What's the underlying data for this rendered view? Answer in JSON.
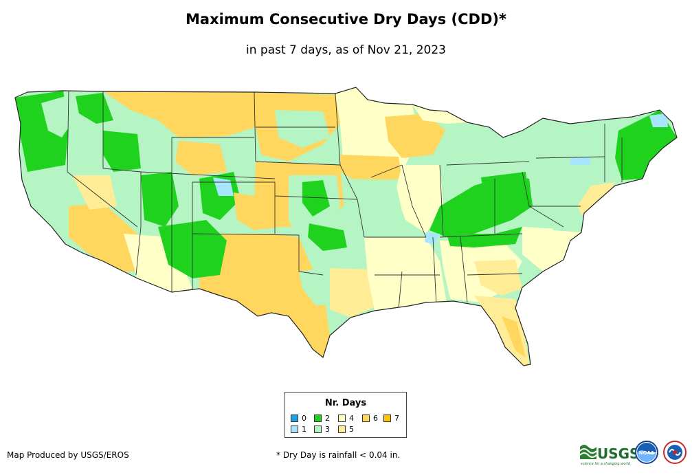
{
  "title": "Maximum Consecutive Dry Days (CDD)*",
  "subtitle": "in past 7 days, as of Nov 21, 2023",
  "legend": {
    "title": "Nr. Days",
    "items": [
      {
        "label": "0",
        "color": "#1f9fe6"
      },
      {
        "label": "1",
        "color": "#a6e6ff"
      },
      {
        "label": "2",
        "color": "#1ed21e"
      },
      {
        "label": "3",
        "color": "#b4f5c3"
      },
      {
        "label": "4",
        "color": "#ffffc8"
      },
      {
        "label": "5",
        "color": "#ffec96"
      },
      {
        "label": "6",
        "color": "#ffd75f"
      },
      {
        "label": "7",
        "color": "#ffc200"
      }
    ]
  },
  "credit": "Map Produced by USGS/EROS",
  "footnote": "* Dry Day is rainfall < 0.04 in.",
  "logos": {
    "usgs": "USGS",
    "usgs_tagline": "science for a changing world",
    "noaa": "NOAA"
  }
}
